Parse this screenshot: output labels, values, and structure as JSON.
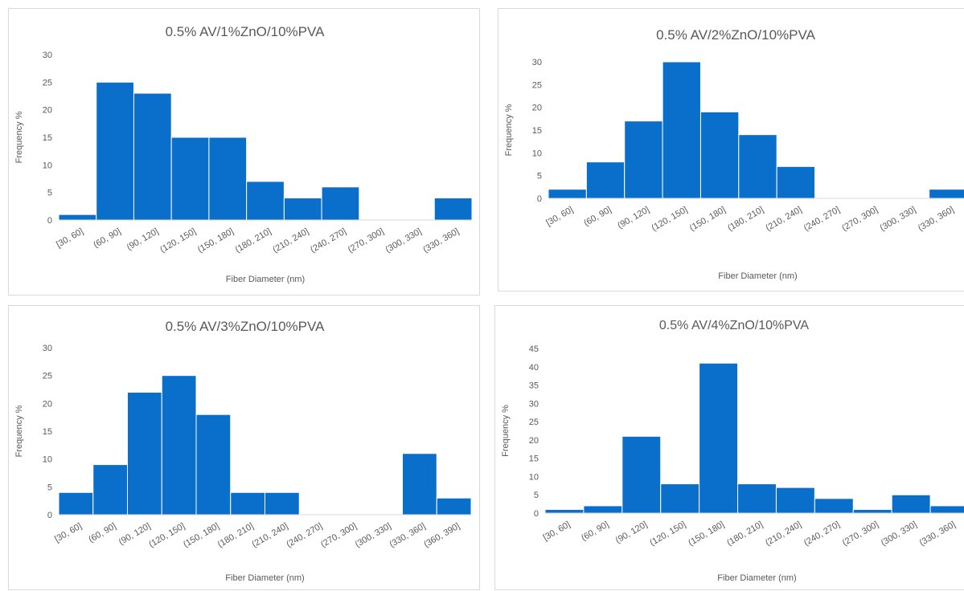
{
  "chart_data": [
    {
      "type": "bar",
      "title": "0.5% AV/1%ZnO/10%PVA",
      "xlabel": "Fiber Diameter (nm)",
      "ylabel": "Frequency %",
      "ylim": [
        0,
        30
      ],
      "yticks": [
        0,
        5,
        10,
        15,
        20,
        25,
        30
      ],
      "categories": [
        "[30, 60]",
        "(60, 90]",
        "(90, 120]",
        "(120, 150]",
        "(150, 180]",
        "(180, 210]",
        "(210, 240]",
        "(240, 270]",
        "(270, 300]",
        "(300, 330]",
        "(330, 360]"
      ],
      "values": [
        1,
        25,
        23,
        15,
        15,
        7,
        4,
        6,
        0,
        0,
        4
      ],
      "color": "#0a6ecb",
      "grid": false
    },
    {
      "type": "bar",
      "title": "0.5% AV/2%ZnO/10%PVA",
      "xlabel": "Fiber Diameter (nm)",
      "ylabel": "Frequency %",
      "ylim": [
        0,
        30
      ],
      "yticks": [
        0,
        5,
        10,
        15,
        20,
        25,
        30
      ],
      "categories": [
        "[30, 60]",
        "(60, 90]",
        "(90, 120]",
        "(120, 150]",
        "(150, 180]",
        "(180, 210]",
        "(210, 240]",
        "(240, 270]",
        "(270, 300]",
        "(300, 330]",
        "(330, 360]"
      ],
      "values": [
        2,
        8,
        17,
        30,
        19,
        14,
        7,
        0,
        0,
        0,
        2
      ],
      "color": "#0a6ecb",
      "grid": false
    },
    {
      "type": "bar",
      "title": "0.5% AV/3%ZnO/10%PVA",
      "xlabel": "Fiber Diameter (nm)",
      "ylabel": "Frequency %",
      "ylim": [
        0,
        30
      ],
      "yticks": [
        0,
        5,
        10,
        15,
        20,
        25,
        30
      ],
      "categories": [
        "[30, 60]",
        "(60, 90]",
        "(90, 120]",
        "(120, 150]",
        "(150, 180]",
        "(180, 210]",
        "(210, 240]",
        "(240, 270]",
        "(270, 300]",
        "(300, 330]",
        "(330, 360]",
        "(360, 390]"
      ],
      "values": [
        4,
        9,
        22,
        25,
        18,
        4,
        4,
        0,
        0,
        0,
        11,
        3
      ],
      "color": "#0a6ecb",
      "grid": false
    },
    {
      "type": "bar",
      "title": "0.5% AV/4%ZnO/10%PVA",
      "xlabel": "Fiber Diameter (nm)",
      "ylabel": "Frequency %",
      "ylim": [
        0,
        45
      ],
      "yticks": [
        0,
        5,
        10,
        15,
        20,
        25,
        30,
        35,
        40,
        45
      ],
      "categories": [
        "[30, 60]",
        "(60, 90]",
        "(90, 120]",
        "(120, 150]",
        "(150, 180]",
        "(180, 210]",
        "(210, 240]",
        "(240, 270]",
        "(270, 300]",
        "(300, 330]",
        "(330, 360]"
      ],
      "values": [
        1,
        2,
        21,
        8,
        41,
        8,
        7,
        4,
        1,
        5,
        2
      ],
      "color": "#0a6ecb",
      "grid": false
    }
  ]
}
